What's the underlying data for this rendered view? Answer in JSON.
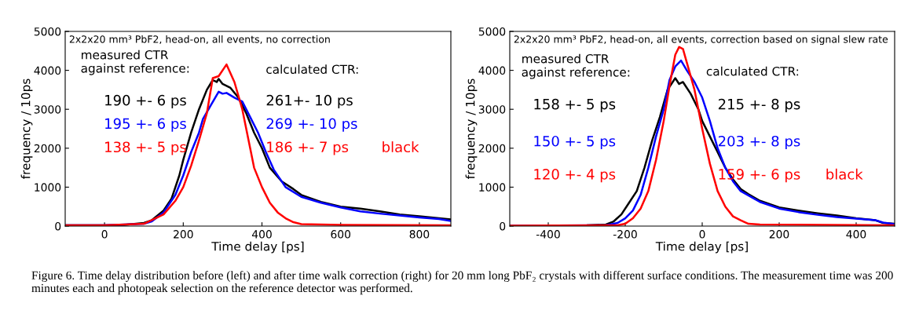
{
  "chart_data": [
    {
      "type": "line",
      "xlabel": "Time delay [ps]",
      "ylabel": "frequency / 10ps",
      "xlim": [
        -100,
        880
      ],
      "xticks": [
        0,
        200,
        400,
        600,
        800
      ],
      "ylim": [
        0,
        5000
      ],
      "yticks": [
        0,
        1000,
        2000,
        3000,
        4000,
        5000
      ],
      "grid": false,
      "legend": false,
      "annotations": [
        "2x2x20 mm³ PbF2, head-on, all events, no correction",
        "measured CTR\nagainst reference:",
        "calculated CTR:",
        "190 +- 6 ps",
        "261+- 10 ps",
        "195 +- 6 ps",
        "269 +- 10 ps",
        "138 +- 5 ps",
        "186 +- 7 ps"
      ],
      "series": [
        {
          "color": "#000000",
          "x": [
            -100,
            0,
            50,
            100,
            120,
            150,
            170,
            190,
            200,
            220,
            240,
            260,
            275,
            285,
            290,
            300,
            320,
            340,
            360,
            380,
            400,
            420,
            450,
            480,
            500,
            550,
            600,
            650,
            700,
            750,
            800,
            850,
            880
          ],
          "values": [
            20,
            20,
            30,
            80,
            150,
            400,
            700,
            1300,
            1700,
            2400,
            3000,
            3500,
            3750,
            3700,
            3780,
            3650,
            3550,
            3300,
            2900,
            2400,
            2000,
            1500,
            1150,
            950,
            800,
            620,
            500,
            450,
            380,
            300,
            250,
            200,
            170
          ]
        },
        {
          "color": "#0000ff",
          "x": [
            -100,
            0,
            100,
            120,
            150,
            180,
            200,
            220,
            240,
            250,
            270,
            290,
            300,
            310,
            330,
            350,
            370,
            390,
            410,
            430,
            460,
            500,
            550,
            600,
            650,
            700,
            750,
            800,
            850,
            880
          ],
          "values": [
            20,
            20,
            60,
            120,
            350,
            800,
            1300,
            1900,
            2400,
            2750,
            3100,
            3450,
            3400,
            3420,
            3300,
            3200,
            2800,
            2400,
            1900,
            1450,
            1000,
            750,
            600,
            480,
            380,
            320,
            270,
            220,
            180,
            130
          ]
        },
        {
          "name": "black",
          "color": "#ff0000",
          "x": [
            -100,
            0,
            100,
            150,
            180,
            200,
            220,
            240,
            260,
            275,
            290,
            310,
            330,
            350,
            370,
            380,
            400,
            420,
            440,
            460,
            480,
            500,
            550,
            600,
            880
          ],
          "values": [
            20,
            20,
            60,
            300,
            650,
            1000,
            1550,
            2200,
            2900,
            3800,
            3850,
            4150,
            3700,
            3000,
            2000,
            1500,
            1000,
            600,
            350,
            200,
            100,
            50,
            40,
            30,
            20
          ]
        }
      ]
    },
    {
      "type": "line",
      "xlabel": "Time delay [ps]",
      "ylabel": "frequency / 10ps",
      "xlim": [
        -500,
        500
      ],
      "xticks": [
        -400,
        -200,
        0,
        200,
        400
      ],
      "ylim": [
        0,
        5000
      ],
      "yticks": [
        0,
        1000,
        2000,
        3000,
        4000,
        5000
      ],
      "grid": false,
      "legend": false,
      "annotations": [
        "2x2x20 mm³ PbF2, head-on, all events, correction based on signal slew rate",
        "measured CTR\nagainst reference:",
        "calculated CTR:",
        "158 +- 5 ps",
        "215 +- 8 ps",
        "150 +- 5 ps",
        "203 +- 8 ps",
        "120 +- 4 ps",
        "159 +- 6 ps",
        "Figure 6. Time delay distribution before (left) and after time walk correction (right) for 20 mm long PbF₂ crystals with different surface conditions. The measurement time was 200 minutes each and photopeak selection on the reference detector was performed."
      ],
      "series": [
        {
          "color": "#000000",
          "x": [
            -500,
            -300,
            -250,
            -230,
            -210,
            -190,
            -170,
            -150,
            -130,
            -110,
            -90,
            -70,
            -60,
            -50,
            -30,
            -10,
            0,
            20,
            40,
            60,
            80,
            100,
            120,
            150,
            200,
            250,
            300,
            350,
            400,
            450,
            470,
            500
          ],
          "values": [
            10,
            20,
            40,
            120,
            300,
            600,
            900,
            1500,
            2200,
            2800,
            3500,
            3800,
            3650,
            3700,
            3400,
            3000,
            2700,
            2300,
            1900,
            1500,
            1200,
            950,
            820,
            650,
            480,
            400,
            330,
            270,
            200,
            150,
            80,
            60
          ]
        },
        {
          "color": "#0000ff",
          "x": [
            -500,
            -250,
            -220,
            -200,
            -180,
            -160,
            -140,
            -120,
            -100,
            -85,
            -70,
            -55,
            -40,
            -20,
            0,
            20,
            40,
            60,
            80,
            100,
            150,
            200,
            250,
            300,
            350,
            400,
            450,
            470,
            500
          ],
          "values": [
            10,
            20,
            80,
            200,
            400,
            800,
            1500,
            2300,
            3000,
            3750,
            4100,
            4250,
            4000,
            3700,
            3300,
            2700,
            2000,
            1500,
            1150,
            900,
            620,
            450,
            360,
            290,
            230,
            190,
            150,
            90,
            50
          ]
        },
        {
          "name": "black",
          "color": "#ff0000",
          "x": [
            -500,
            -220,
            -200,
            -180,
            -160,
            -140,
            -120,
            -100,
            -85,
            -70,
            -60,
            -50,
            -40,
            -20,
            0,
            20,
            40,
            60,
            80,
            100,
            120,
            150,
            500
          ],
          "values": [
            10,
            20,
            60,
            200,
            450,
            900,
            1700,
            2700,
            3600,
            4400,
            4600,
            4550,
            4200,
            3500,
            2500,
            1600,
            900,
            500,
            250,
            150,
            60,
            40,
            20
          ]
        }
      ]
    }
  ]
}
